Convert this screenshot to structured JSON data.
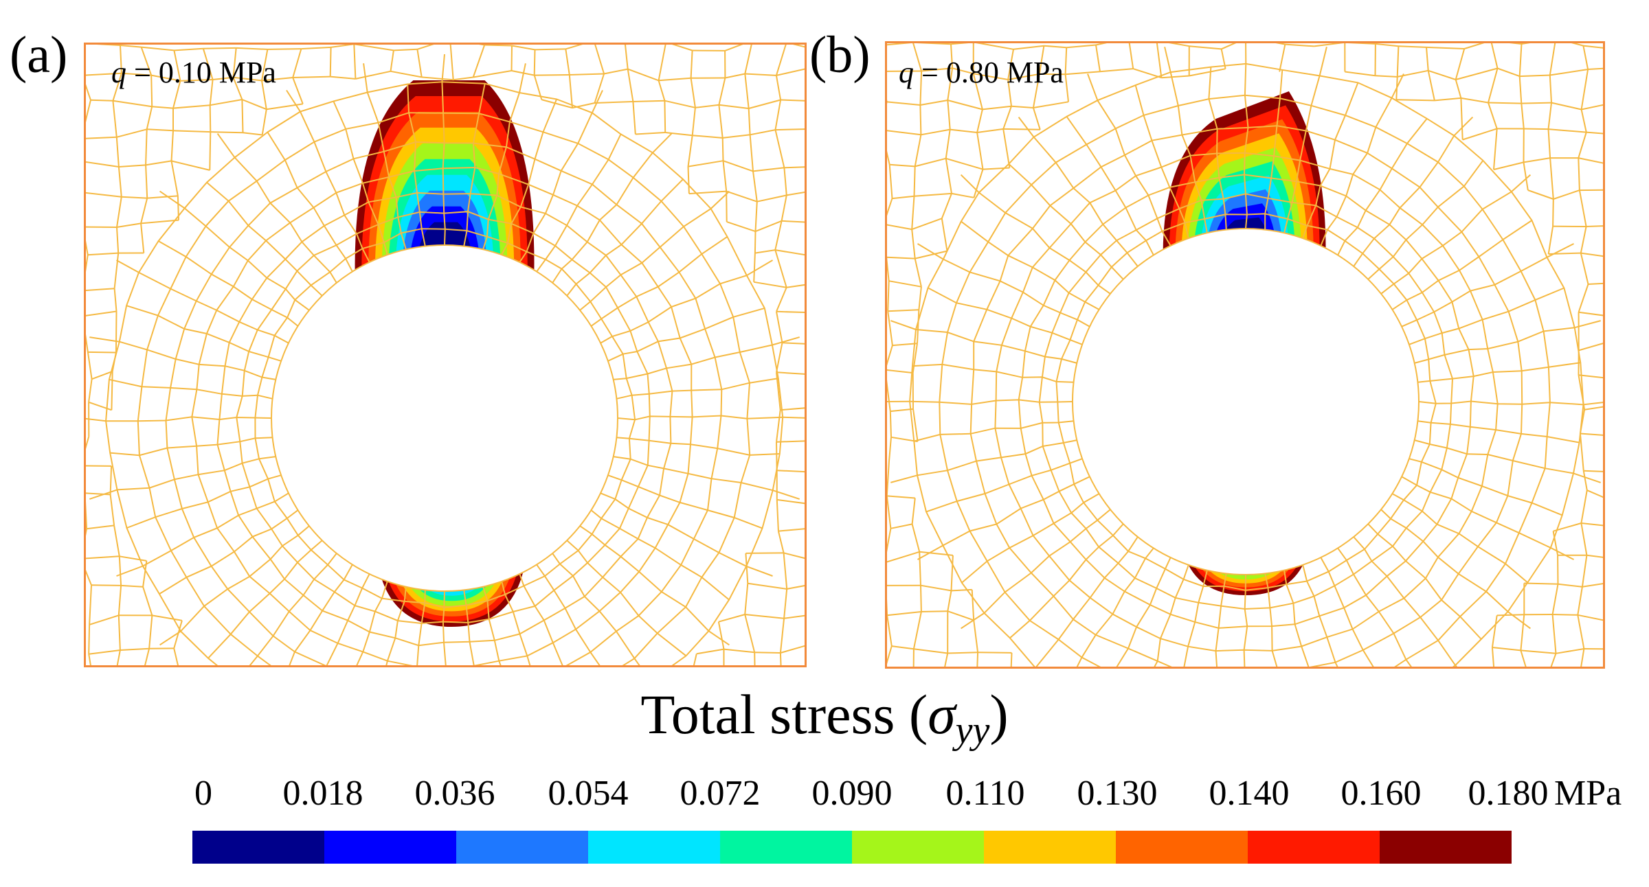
{
  "panels": [
    {
      "label": "(a)",
      "load_symbol": "q",
      "load_value": "= 0.10 MPa"
    },
    {
      "label": "(b)",
      "load_symbol": "q",
      "load_value": "= 0.80 MPa"
    }
  ],
  "legend": {
    "title_text": "Total stress (",
    "title_symbol": "σ",
    "title_subscript": "yy",
    "title_close": ")",
    "ticks": [
      "0",
      "0.018",
      "0.036",
      "0.054",
      "0.072",
      "0.090",
      "0.110",
      "0.130",
      "0.140",
      "0.160",
      "0.180"
    ],
    "unit": "MPa",
    "colors": [
      "#00008b",
      "#0000ff",
      "#1e78ff",
      "#00e5ff",
      "#00f5a0",
      "#a5f51a",
      "#ffc800",
      "#ff6400",
      "#ff1a00",
      "#8b0000"
    ]
  },
  "colors": {
    "mesh": "#f5b942",
    "frame": "#f28a3b"
  }
}
